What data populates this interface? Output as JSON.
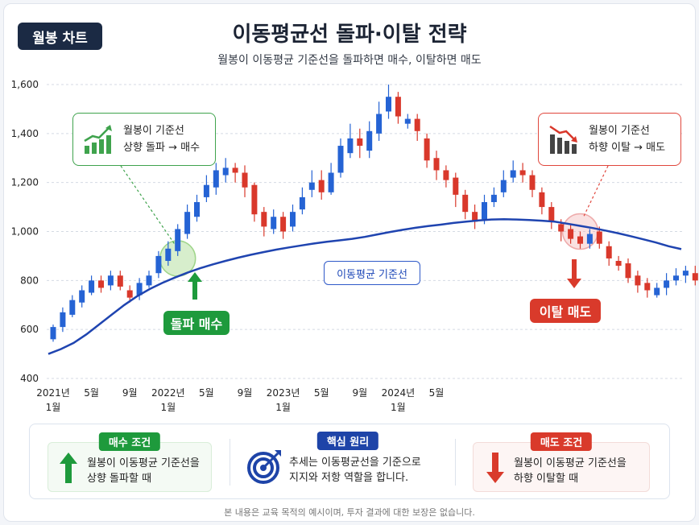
{
  "header": {
    "badge": "월봉 차트",
    "title": "이동평균선 돌파·이탈 전략",
    "subtitle": "월봉이 이동평균 기준선을 돌파하면 매수, 이탈하면 매도"
  },
  "colors": {
    "up": "#2563d4",
    "down": "#d9382b",
    "ma": "#1f44b0",
    "buy": "#1e9a3c",
    "sell": "#d93a2b",
    "navy": "#1b2a44"
  },
  "annotations": {
    "buy_callout": [
      "월봉이 기준선",
      "상향 돌파 → 매수"
    ],
    "sell_callout": [
      "월봉이 기준선",
      "하향 이탈 → 매도"
    ],
    "ma_label": "이동평균 기준선",
    "buy_action": "돌파 매수",
    "sell_action": "이탈 매도",
    "buy_icon": "rising-bar-chart-icon",
    "sell_icon": "falling-bar-chart-icon"
  },
  "chart_data": {
    "type": "candlestick",
    "y_ticks": [
      "1,600",
      "1,400",
      "1,200",
      "1,000",
      "800",
      "600",
      "400"
    ],
    "y_tick_values": [
      1600,
      1400,
      1200,
      1000,
      800,
      600,
      400
    ],
    "ylim": [
      400,
      1600
    ],
    "x_ticks": [
      {
        "index": 0,
        "l1": "2021년",
        "l2": "1월"
      },
      {
        "index": 4,
        "l1": "5월",
        "l2": ""
      },
      {
        "index": 8,
        "l1": "9월",
        "l2": ""
      },
      {
        "index": 12,
        "l1": "2022년",
        "l2": "1월"
      },
      {
        "index": 16,
        "l1": "5월",
        "l2": ""
      },
      {
        "index": 20,
        "l1": "9월",
        "l2": ""
      },
      {
        "index": 24,
        "l1": "2023년",
        "l2": "1월"
      },
      {
        "index": 28,
        "l1": "5월",
        "l2": ""
      },
      {
        "index": 32,
        "l1": "9월",
        "l2": ""
      },
      {
        "index": 36,
        "l1": "2024년",
        "l2": "1월"
      },
      {
        "index": 40,
        "l1": "5월",
        "l2": ""
      }
    ],
    "candles": [
      [
        560,
        610,
        550,
        620
      ],
      [
        610,
        670,
        590,
        690
      ],
      [
        660,
        720,
        650,
        740
      ],
      [
        710,
        760,
        690,
        780
      ],
      [
        750,
        800,
        740,
        820
      ],
      [
        800,
        770,
        750,
        820
      ],
      [
        780,
        820,
        760,
        840
      ],
      [
        820,
        775,
        760,
        840
      ],
      [
        760,
        730,
        710,
        780
      ],
      [
        740,
        790,
        720,
        810
      ],
      [
        780,
        820,
        770,
        840
      ],
      [
        830,
        900,
        810,
        920
      ],
      [
        880,
        930,
        860,
        960
      ],
      [
        920,
        1010,
        900,
        1030
      ],
      [
        990,
        1080,
        970,
        1110
      ],
      [
        1060,
        1120,
        1040,
        1150
      ],
      [
        1140,
        1190,
        1120,
        1230
      ],
      [
        1180,
        1250,
        1150,
        1280
      ],
      [
        1230,
        1260,
        1200,
        1300
      ],
      [
        1260,
        1240,
        1200,
        1280
      ],
      [
        1240,
        1180,
        1140,
        1270
      ],
      [
        1190,
        1070,
        1040,
        1200
      ],
      [
        1080,
        1020,
        980,
        1100
      ],
      [
        1010,
        1060,
        990,
        1090
      ],
      [
        1060,
        1000,
        970,
        1080
      ],
      [
        1020,
        1080,
        1000,
        1110
      ],
      [
        1090,
        1140,
        1070,
        1180
      ],
      [
        1170,
        1200,
        1140,
        1250
      ],
      [
        1210,
        1160,
        1130,
        1250
      ],
      [
        1160,
        1240,
        1150,
        1280
      ],
      [
        1240,
        1350,
        1220,
        1380
      ],
      [
        1320,
        1380,
        1300,
        1440
      ],
      [
        1380,
        1350,
        1300,
        1420
      ],
      [
        1330,
        1410,
        1300,
        1450
      ],
      [
        1400,
        1480,
        1370,
        1530
      ],
      [
        1490,
        1550,
        1460,
        1600
      ],
      [
        1550,
        1470,
        1440,
        1570
      ],
      [
        1440,
        1460,
        1420,
        1480
      ],
      [
        1460,
        1410,
        1370,
        1480
      ],
      [
        1380,
        1290,
        1260,
        1400
      ]
    ],
    "candles2": [
      [
        1300,
        1250,
        1210,
        1330
      ],
      [
        1250,
        1210,
        1180,
        1270
      ],
      [
        1220,
        1150,
        1100,
        1240
      ],
      [
        1150,
        1080,
        1050,
        1170
      ],
      [
        1080,
        1040,
        1010,
        1110
      ],
      [
        1050,
        1120,
        1030,
        1150
      ],
      [
        1120,
        1150,
        1100,
        1180
      ],
      [
        1160,
        1210,
        1140,
        1250
      ],
      [
        1220,
        1250,
        1200,
        1290
      ],
      [
        1250,
        1230,
        1200,
        1280
      ],
      [
        1230,
        1170,
        1140,
        1250
      ],
      [
        1160,
        1100,
        1070,
        1180
      ],
      [
        1100,
        1040,
        1010,
        1120
      ],
      [
        1030,
        1000,
        960,
        1050
      ],
      [
        1010,
        970,
        950,
        1030
      ],
      [
        980,
        950,
        930,
        1000
      ],
      [
        950,
        990,
        930,
        1010
      ],
      [
        1000,
        950,
        930,
        1020
      ],
      [
        940,
        890,
        860,
        960
      ],
      [
        880,
        860,
        840,
        900
      ],
      [
        870,
        810,
        790,
        890
      ],
      [
        820,
        780,
        750,
        840
      ],
      [
        790,
        760,
        730,
        810
      ],
      [
        740,
        770,
        730,
        790
      ],
      [
        770,
        800,
        740,
        830
      ],
      [
        800,
        820,
        780,
        850
      ],
      [
        820,
        840,
        790,
        860
      ],
      [
        830,
        800,
        780,
        860
      ]
    ],
    "ma_values": [
      500,
      520,
      545,
      580,
      620,
      660,
      700,
      735,
      765,
      790,
      812,
      832,
      850,
      866,
      880,
      893,
      905,
      916,
      926,
      935,
      943,
      951,
      958,
      964,
      970,
      978,
      988,
      998,
      1007,
      1015,
      1022,
      1028,
      1035,
      1040,
      1045,
      1049,
      1050,
      1049,
      1047,
      1044,
      1040,
      1032,
      1023,
      1014,
      1004,
      993,
      981,
      968,
      955,
      940,
      928
    ]
  },
  "legend": {
    "buy": {
      "head": "매수 조건",
      "lines": [
        "월봉이 이동평균 기준선을",
        "상향 돌파할 때"
      ]
    },
    "core": {
      "head": "핵심 원리",
      "lines": [
        "추세는 이동평균선을 기준으로",
        "지지와 저항 역할을 합니다."
      ]
    },
    "sell": {
      "head": "매도 조건",
      "lines": [
        "월봉이 이동평균 기준선을",
        "하향 이탈할 때"
      ]
    }
  },
  "footer": "본 내용은 교육 목적의 예시이며, 투자 결과에 대한 보장은 없습니다."
}
